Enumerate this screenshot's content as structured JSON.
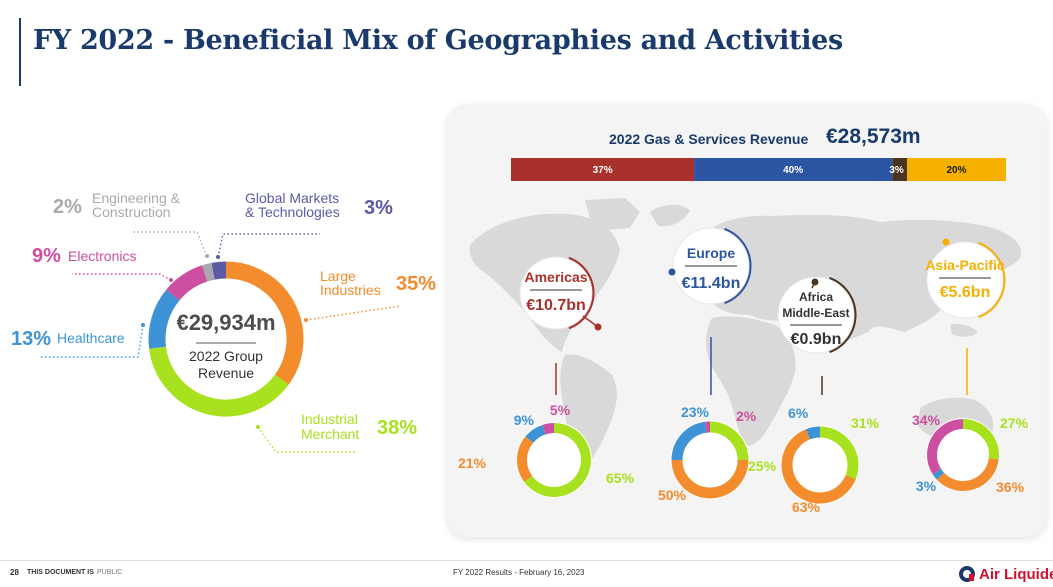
{
  "page": {
    "title": "FY 2022 - Beneficial Mix of Geographies and Activities",
    "footer_page": "28",
    "footer_doc_prefix": "THIS DOCUMENT IS",
    "footer_doc_status": "PUBLIC",
    "footer_center": "FY 2022 Results - February 16, 2023",
    "logo_text": "Air Liquide",
    "logo_icon": "air-liquide-logo-icon"
  },
  "chart_data": [
    {
      "type": "pie",
      "variant": "donut",
      "center_value": "€29,934m",
      "center_label_line1": "2022 Group",
      "center_label_line2": "Revenue",
      "categories": [
        "Large Industries",
        "Industrial Merchant",
        "Healthcare",
        "Electronics",
        "Engineering & Construction",
        "Global Markets & Technologies"
      ],
      "values": [
        35,
        38,
        13,
        9,
        2,
        3
      ],
      "label_lines": [
        [
          "Large",
          "Industries"
        ],
        [
          "Industrial",
          "Merchant"
        ],
        [
          "Healthcare"
        ],
        [
          "Electronics"
        ],
        [
          "Engineering &",
          "Construction"
        ],
        [
          "Global Markets",
          "& Technologies"
        ]
      ],
      "value_labels": [
        "35%",
        "38%",
        "13%",
        "9%",
        "2%",
        "3%"
      ],
      "colors": [
        "#f28c2c",
        "#a8e11d",
        "#3d93d6",
        "#cc4fa1",
        "#a7a9ac",
        "#5c5aa6"
      ]
    },
    {
      "type": "bar",
      "variant": "stacked-100",
      "title": "2022 Gas & Services Revenue",
      "total": "€28,573m",
      "categories": [
        "Americas",
        "Europe",
        "Africa Middle-East",
        "Asia-Pacific"
      ],
      "values": [
        37,
        40,
        3,
        20
      ],
      "value_labels": [
        "37%",
        "40%",
        "3%",
        "20%"
      ],
      "colors": [
        "#a8312b",
        "#2c55a3",
        "#4a3520",
        "#f6b000"
      ]
    },
    {
      "type": "pie",
      "variant": "donut",
      "region": "Americas",
      "region_revenue": "€10.7bn",
      "accent": "#a8312b",
      "categories": [
        "Industrial Merchant",
        "Large Industries",
        "Healthcare",
        "Electronics"
      ],
      "values": [
        65,
        21,
        9,
        5
      ],
      "value_labels": [
        "65%",
        "21%",
        "9%",
        "5%"
      ]
    },
    {
      "type": "pie",
      "variant": "donut",
      "region": "Europe",
      "region_revenue": "€11.4bn",
      "accent": "#2c55a3",
      "categories": [
        "Industrial Merchant",
        "Large Industries",
        "Healthcare",
        "Electronics"
      ],
      "values": [
        25,
        50,
        23,
        2
      ],
      "value_labels": [
        "25%",
        "50%",
        "23%",
        "2%"
      ]
    },
    {
      "type": "pie",
      "variant": "donut",
      "region": "Africa Middle-East",
      "region_name_line1": "Africa",
      "region_name_line2": "Middle-East",
      "region_revenue": "€0.9bn",
      "accent": "#4a3520",
      "categories": [
        "Industrial Merchant",
        "Large Industries",
        "Healthcare"
      ],
      "values": [
        31,
        63,
        6
      ],
      "value_labels": [
        "31%",
        "63%",
        "6%"
      ]
    },
    {
      "type": "pie",
      "variant": "donut",
      "region": "Asia-Pacific",
      "region_revenue": "€5.6bn",
      "accent": "#f6b000",
      "categories": [
        "Industrial Merchant",
        "Large Industries",
        "Healthcare",
        "Electronics"
      ],
      "values": [
        27,
        36,
        3,
        34
      ],
      "value_labels": [
        "27%",
        "36%",
        "3%",
        "34%"
      ]
    }
  ],
  "segment_colors": {
    "Large Industries": "#f28c2c",
    "Industrial Merchant": "#a8e11d",
    "Healthcare": "#3d93d6",
    "Electronics": "#cc4fa1",
    "Engineering & Construction": "#a7a9ac",
    "Global Markets & Technologies": "#5c5aa6"
  },
  "colors": {
    "title": "#1a3a6b",
    "map": "#d9d9d9",
    "panel": "#f4f4f4"
  }
}
